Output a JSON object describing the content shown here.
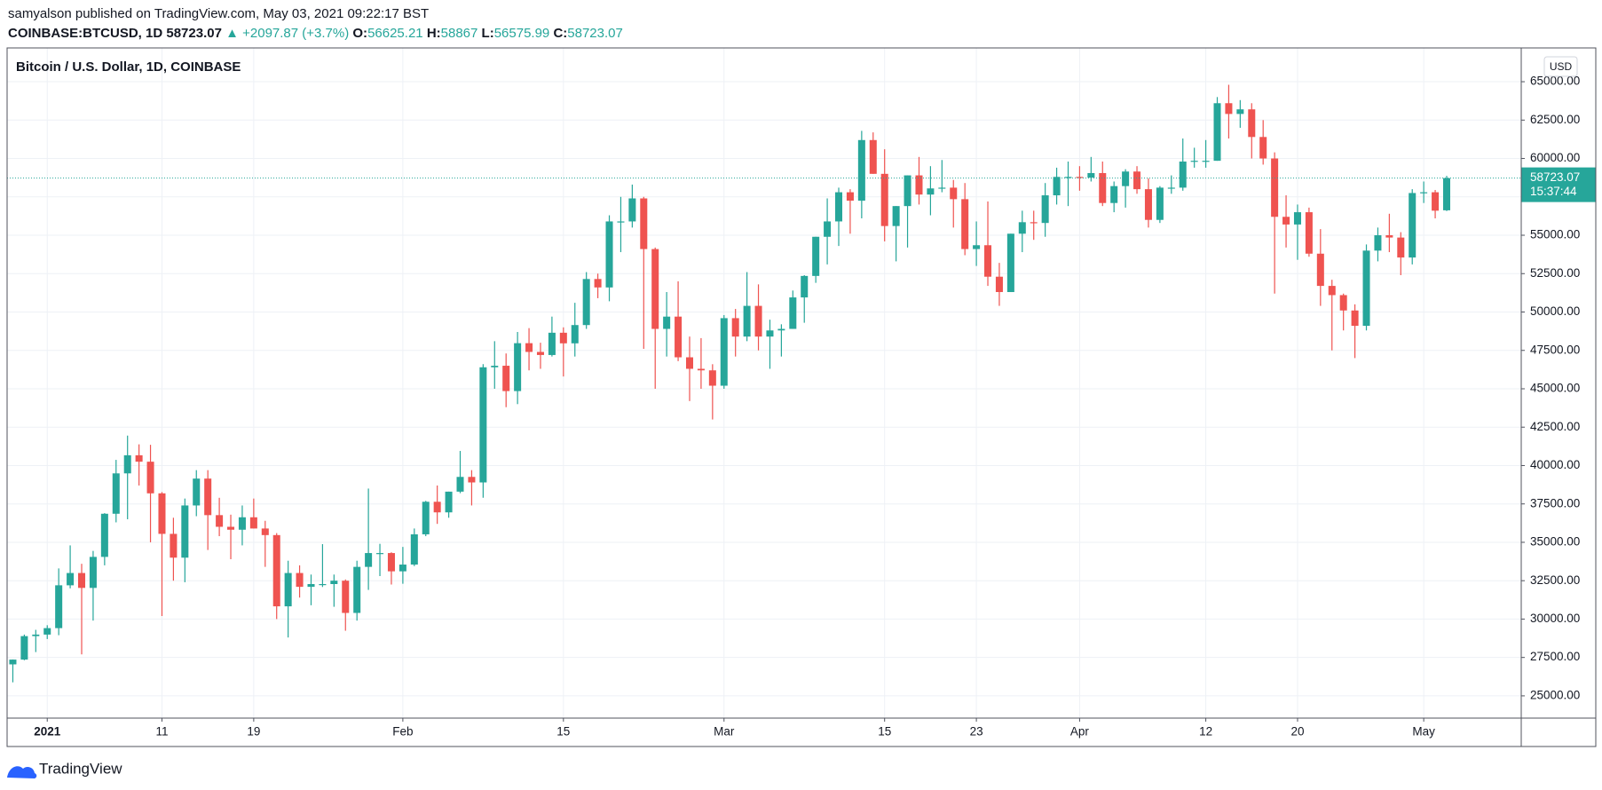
{
  "header": {
    "published": "samyalson published on TradingView.com, May 03, 2021 09:22:17 BST",
    "symbol": "COINBASE:BTCUSD, 1D",
    "change": "▲ +2097.87 (+3.7%)",
    "ohlc_labels": [
      "O:",
      "H:",
      "L:",
      "C:"
    ]
  },
  "footer": {
    "brand": "TradingView"
  },
  "chart_data": {
    "type": "candlestick",
    "title": "Bitcoin / U.S. Dollar, 1D, COINBASE",
    "y_unit": "USD",
    "countdown": "15:37:44",
    "up_color": "#26a69a",
    "down_color": "#ef5350",
    "grid": true,
    "x": [
      "2020-12-29",
      "2020-12-30",
      "2020-12-31",
      "2021-01-01",
      "2021-01-02",
      "2021-01-03",
      "2021-01-04",
      "2021-01-05",
      "2021-01-06",
      "2021-01-07",
      "2021-01-08",
      "2021-01-09",
      "2021-01-10",
      "2021-01-11",
      "2021-01-12",
      "2021-01-13",
      "2021-01-14",
      "2021-01-15",
      "2021-01-16",
      "2021-01-17",
      "2021-01-18",
      "2021-01-19",
      "2021-01-20",
      "2021-01-21",
      "2021-01-22",
      "2021-01-23",
      "2021-01-24",
      "2021-01-25",
      "2021-01-26",
      "2021-01-27",
      "2021-01-28",
      "2021-01-29",
      "2021-01-30",
      "2021-01-31",
      "2021-02-01",
      "2021-02-02",
      "2021-02-03",
      "2021-02-04",
      "2021-02-05",
      "2021-02-06",
      "2021-02-07",
      "2021-02-08",
      "2021-02-09",
      "2021-02-10",
      "2021-02-11",
      "2021-02-12",
      "2021-02-13",
      "2021-02-14",
      "2021-02-15",
      "2021-02-16",
      "2021-02-17",
      "2021-02-18",
      "2021-02-19",
      "2021-02-20",
      "2021-02-21",
      "2021-02-22",
      "2021-02-23",
      "2021-02-24",
      "2021-02-25",
      "2021-02-26",
      "2021-02-27",
      "2021-02-28",
      "2021-03-01",
      "2021-03-02",
      "2021-03-03",
      "2021-03-04",
      "2021-03-05",
      "2021-03-06",
      "2021-03-07",
      "2021-03-08",
      "2021-03-09",
      "2021-03-10",
      "2021-03-11",
      "2021-03-12",
      "2021-03-13",
      "2021-03-14",
      "2021-03-15",
      "2021-03-16",
      "2021-03-17",
      "2021-03-18",
      "2021-03-19",
      "2021-03-20",
      "2021-03-21",
      "2021-03-22",
      "2021-03-23",
      "2021-03-24",
      "2021-03-25",
      "2021-03-26",
      "2021-03-27",
      "2021-03-28",
      "2021-03-29",
      "2021-03-30",
      "2021-03-31",
      "2021-04-01",
      "2021-04-02",
      "2021-04-03",
      "2021-04-04",
      "2021-04-05",
      "2021-04-06",
      "2021-04-07",
      "2021-04-08",
      "2021-04-09",
      "2021-04-10",
      "2021-04-11",
      "2021-04-12",
      "2021-04-13",
      "2021-04-14",
      "2021-04-15",
      "2021-04-16",
      "2021-04-17",
      "2021-04-18",
      "2021-04-19",
      "2021-04-20",
      "2021-04-21",
      "2021-04-22",
      "2021-04-23",
      "2021-04-24",
      "2021-04-25",
      "2021-04-26",
      "2021-04-27",
      "2021-04-28",
      "2021-04-29",
      "2021-04-30",
      "2021-05-01",
      "2021-05-02",
      "2021-05-03"
    ],
    "open": [
      27050,
      27360,
      28890,
      28990,
      29410,
      32200,
      33000,
      32030,
      34050,
      36860,
      39490,
      40670,
      40250,
      38190,
      35550,
      34000,
      37400,
      39150,
      36770,
      36010,
      35820,
      36630,
      35900,
      35470,
      30830,
      33000,
      32100,
      32280,
      32280,
      32500,
      30400,
      33400,
      34300,
      34300,
      33110,
      33550,
      35520,
      37640,
      36950,
      38300,
      39260,
      38900,
      46400,
      46500,
      44850,
      47970,
      47400,
      47200,
      48650,
      47960,
      49150,
      52150,
      51600,
      55900,
      55900,
      57400,
      54100,
      48900,
      49700,
      47050,
      46300,
      46200,
      45200,
      49600,
      48400,
      50400,
      48400,
      48800,
      48900,
      50950,
      52350,
      54900,
      55900,
      57800,
      57250,
      61200,
      59000,
      55600,
      56900,
      58900,
      57650,
      58050,
      58100,
      57350,
      54100,
      54350,
      52300,
      51300,
      55100,
      55850,
      55800,
      57600,
      58800,
      58800,
      58750,
      59050,
      57100,
      58200,
      59150,
      58000,
      56000,
      58100,
      58100,
      59800,
      59850,
      59850,
      63600,
      62900,
      63200,
      61400,
      60000,
      56200,
      55700,
      56500,
      53800,
      51700,
      51100,
      50100,
      49100,
      54000,
      55000,
      54850,
      53550,
      57750,
      57800,
      56625.21
    ],
    "high": [
      27370,
      28990,
      29300,
      29600,
      33300,
      34800,
      33600,
      34440,
      36900,
      40370,
      41950,
      41380,
      41350,
      38270,
      36600,
      37850,
      39700,
      39700,
      37900,
      36800,
      37400,
      37850,
      36400,
      35600,
      33800,
      33500,
      32900,
      34880,
      32900,
      32580,
      33800,
      38500,
      34900,
      34350,
      34700,
      35900,
      37700,
      38700,
      38300,
      40950,
      39700,
      46600,
      48100,
      47300,
      48700,
      48950,
      48000,
      49700,
      49000,
      50600,
      52600,
      52500,
      56300,
      57500,
      58300,
      57500,
      54200,
      51300,
      52000,
      48400,
      48300,
      46600,
      49800,
      50200,
      52600,
      51800,
      49500,
      49200,
      51400,
      52400,
      54900,
      57400,
      58100,
      58000,
      61800,
      61700,
      60600,
      56900,
      58900,
      60100,
      59500,
      59900,
      58600,
      58400,
      55900,
      57200,
      53200,
      55100,
      56600,
      56600,
      58400,
      59400,
      59800,
      59500,
      60100,
      59800,
      58500,
      59300,
      59500,
      58700,
      58200,
      58900,
      61300,
      60700,
      61200,
      64000,
      64800,
      63800,
      63600,
      62500,
      60400,
      57600,
      57000,
      56800,
      55400,
      52100,
      51200,
      50500,
      54400,
      55500,
      56400,
      55200,
      58000,
      58500,
      57950,
      58867
    ],
    "low": [
      25880,
      27320,
      27850,
      28700,
      28950,
      32000,
      27700,
      29900,
      33500,
      36300,
      36500,
      38700,
      35000,
      30200,
      32500,
      32400,
      36700,
      34500,
      35400,
      33900,
      34800,
      35900,
      33400,
      30000,
      28800,
      31400,
      30900,
      32090,
      30800,
      29240,
      29900,
      31900,
      32800,
      32250,
      32300,
      33450,
      35400,
      36200,
      36600,
      38200,
      37400,
      37900,
      45000,
      43800,
      44000,
      46200,
      46300,
      47100,
      45800,
      47100,
      48900,
      50900,
      50700,
      53900,
      55500,
      47600,
      45000,
      47100,
      46800,
      44200,
      45000,
      43000,
      45000,
      47100,
      48100,
      47500,
      46300,
      47100,
      48900,
      49300,
      51900,
      53100,
      54300,
      55100,
      56100,
      59000,
      54600,
      53300,
      54200,
      57000,
      56300,
      57800,
      55500,
      53700,
      53000,
      51700,
      50400,
      51300,
      53900,
      54700,
      54900,
      57000,
      56900,
      57900,
      58500,
      56900,
      56500,
      56800,
      57700,
      55500,
      55800,
      57700,
      57900,
      59400,
      59400,
      59850,
      61300,
      62000,
      60000,
      59600,
      51200,
      54200,
      53400,
      53600,
      50400,
      47500,
      48800,
      47000,
      48800,
      53300,
      53900,
      52400,
      53100,
      57100,
      56100,
      56575.99
    ],
    "close": [
      27360,
      28890,
      28990,
      29410,
      32200,
      33000,
      32030,
      34050,
      36860,
      39490,
      40670,
      40250,
      38190,
      35550,
      34000,
      37400,
      39150,
      36770,
      36010,
      35820,
      36630,
      35900,
      35470,
      30830,
      33000,
      32100,
      32280,
      32280,
      32500,
      30400,
      33400,
      34300,
      34300,
      33110,
      33550,
      35520,
      37640,
      36950,
      38300,
      39260,
      38900,
      46400,
      46500,
      44850,
      47970,
      47400,
      47200,
      48650,
      47960,
      49150,
      52150,
      51600,
      55900,
      55900,
      57400,
      54100,
      48900,
      49700,
      47050,
      46300,
      46200,
      45200,
      49600,
      48400,
      50400,
      48400,
      48800,
      48900,
      50950,
      52350,
      54900,
      55900,
      57800,
      57250,
      61200,
      59000,
      55600,
      56900,
      58900,
      57650,
      58050,
      58100,
      57350,
      54100,
      54350,
      52300,
      51300,
      55100,
      55850,
      55800,
      57600,
      58800,
      58800,
      58750,
      59050,
      57100,
      58200,
      59150,
      58000,
      56000,
      58100,
      58100,
      59800,
      59850,
      59850,
      63600,
      62900,
      63200,
      61400,
      60000,
      56200,
      55700,
      56500,
      53800,
      51700,
      51100,
      50100,
      49100,
      54000,
      55000,
      54850,
      53550,
      57750,
      57800,
      56600,
      58723.07
    ],
    "xlim": [
      "2020-12-28T12:00:00Z",
      "2021-05-09T12:00:00Z"
    ],
    "xticks": [
      {
        "value": "2021-01-01",
        "label": "2021"
      },
      {
        "value": "2021-01-11",
        "label": "11"
      },
      {
        "value": "2021-01-19",
        "label": "19"
      },
      {
        "value": "2021-02-01",
        "label": "Feb"
      },
      {
        "value": "2021-02-15",
        "label": "15"
      },
      {
        "value": "2021-03-01",
        "label": "Mar"
      },
      {
        "value": "2021-03-15",
        "label": "15"
      },
      {
        "value": "2021-03-23",
        "label": "23"
      },
      {
        "value": "2021-04-01",
        "label": "Apr"
      },
      {
        "value": "2021-04-12",
        "label": "12"
      },
      {
        "value": "2021-04-20",
        "label": "20"
      },
      {
        "value": "2021-05-01",
        "label": "May"
      }
    ],
    "ylim": [
      23550,
      67200
    ],
    "yticks": [
      {
        "value": 25000,
        "label": "25000.00"
      },
      {
        "value": 27500,
        "label": "27500.00"
      },
      {
        "value": 30000,
        "label": "30000.00"
      },
      {
        "value": 32500,
        "label": "32500.00"
      },
      {
        "value": 35000,
        "label": "35000.00"
      },
      {
        "value": 37500,
        "label": "37500.00"
      },
      {
        "value": 40000,
        "label": "40000.00"
      },
      {
        "value": 42500,
        "label": "42500.00"
      },
      {
        "value": 45000,
        "label": "45000.00"
      },
      {
        "value": 47500,
        "label": "47500.00"
      },
      {
        "value": 50000,
        "label": "50000.00"
      },
      {
        "value": 52500,
        "label": "52500.00"
      },
      {
        "value": 55000,
        "label": "55000.00"
      },
      {
        "value": 57500,
        "label": "57500.00"
      },
      {
        "value": 60000,
        "label": "60000.00"
      },
      {
        "value": 62500,
        "label": "62500.00"
      },
      {
        "value": 65000,
        "label": "65000.00"
      }
    ]
  }
}
